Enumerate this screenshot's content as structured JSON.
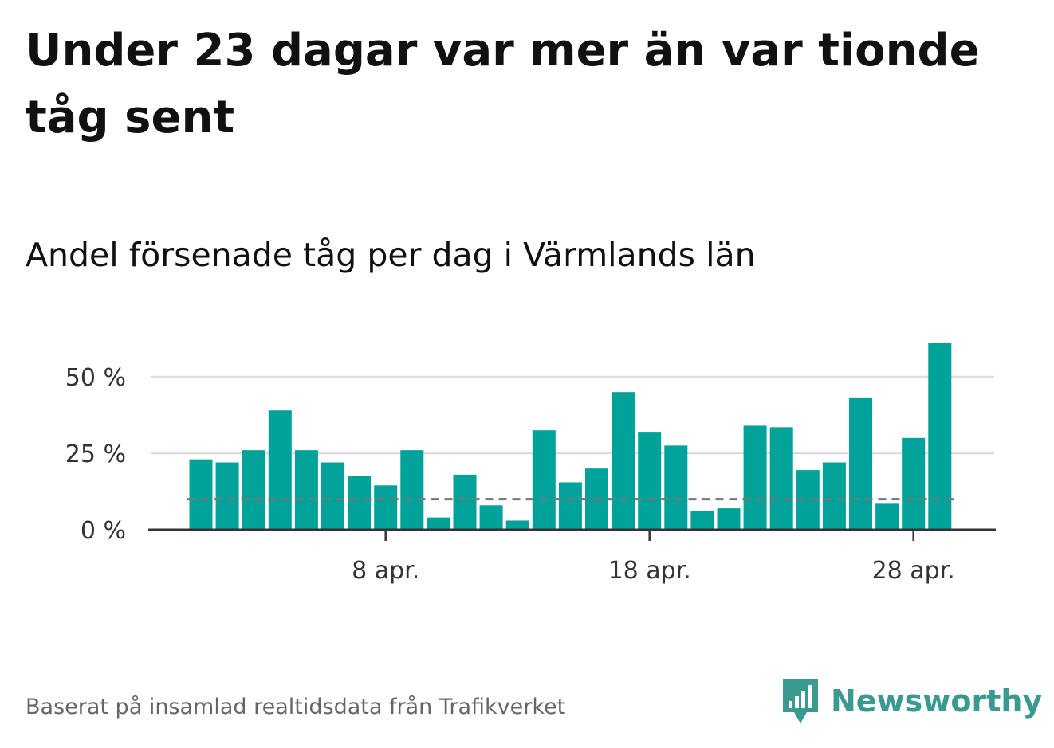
{
  "title": "Under 23 dagar var mer än var tionde tåg sent",
  "subtitle": "Andel försenade tåg per dag i Värmlands län",
  "source": "Baserat på insamlad realtidsdata från Trafikverket",
  "brand": {
    "name": "Newsworthy",
    "color": "#3a9a8f"
  },
  "colors": {
    "bar": "#00a29a",
    "grid": "#dddddd",
    "axis": "#333333",
    "reference_line": "#777777",
    "text": "#111111",
    "muted_text": "#666666"
  },
  "chart_data": {
    "type": "bar",
    "title": "Andel försenade tåg per dag i Värmlands län",
    "unit": "%",
    "x": [
      "2020-04-01",
      "2020-04-02",
      "2020-04-03",
      "2020-04-04",
      "2020-04-05",
      "2020-04-06",
      "2020-04-07",
      "2020-04-08",
      "2020-04-09",
      "2020-04-10",
      "2020-04-11",
      "2020-04-12",
      "2020-04-13",
      "2020-04-14",
      "2020-04-15",
      "2020-04-16",
      "2020-04-17",
      "2020-04-18",
      "2020-04-19",
      "2020-04-20",
      "2020-04-21",
      "2020-04-22",
      "2020-04-23",
      "2020-04-24",
      "2020-04-25",
      "2020-04-26",
      "2020-04-27",
      "2020-04-28",
      "2020-04-29"
    ],
    "values": [
      23,
      22,
      26,
      39,
      26,
      22,
      17.5,
      14.5,
      26,
      4,
      18,
      8,
      3,
      32.5,
      15.5,
      20,
      45,
      32,
      27.5,
      6,
      7,
      34,
      33.5,
      19.5,
      22,
      43,
      8.5,
      30,
      61
    ],
    "reference_line": {
      "value": 10,
      "style": "dashed"
    },
    "ylim": [
      0,
      61
    ],
    "y_ticks": [
      {
        "value": 0,
        "label": "0 %"
      },
      {
        "value": 25,
        "label": "25 %"
      },
      {
        "value": 50,
        "label": "50 %"
      }
    ],
    "x_ticks": [
      {
        "x": "2020-04-08",
        "label": "8 apr."
      },
      {
        "x": "2020-04-18",
        "label": "18 apr."
      },
      {
        "x": "2020-04-28",
        "label": "28 apr."
      }
    ],
    "grid": true,
    "legend": "none"
  }
}
